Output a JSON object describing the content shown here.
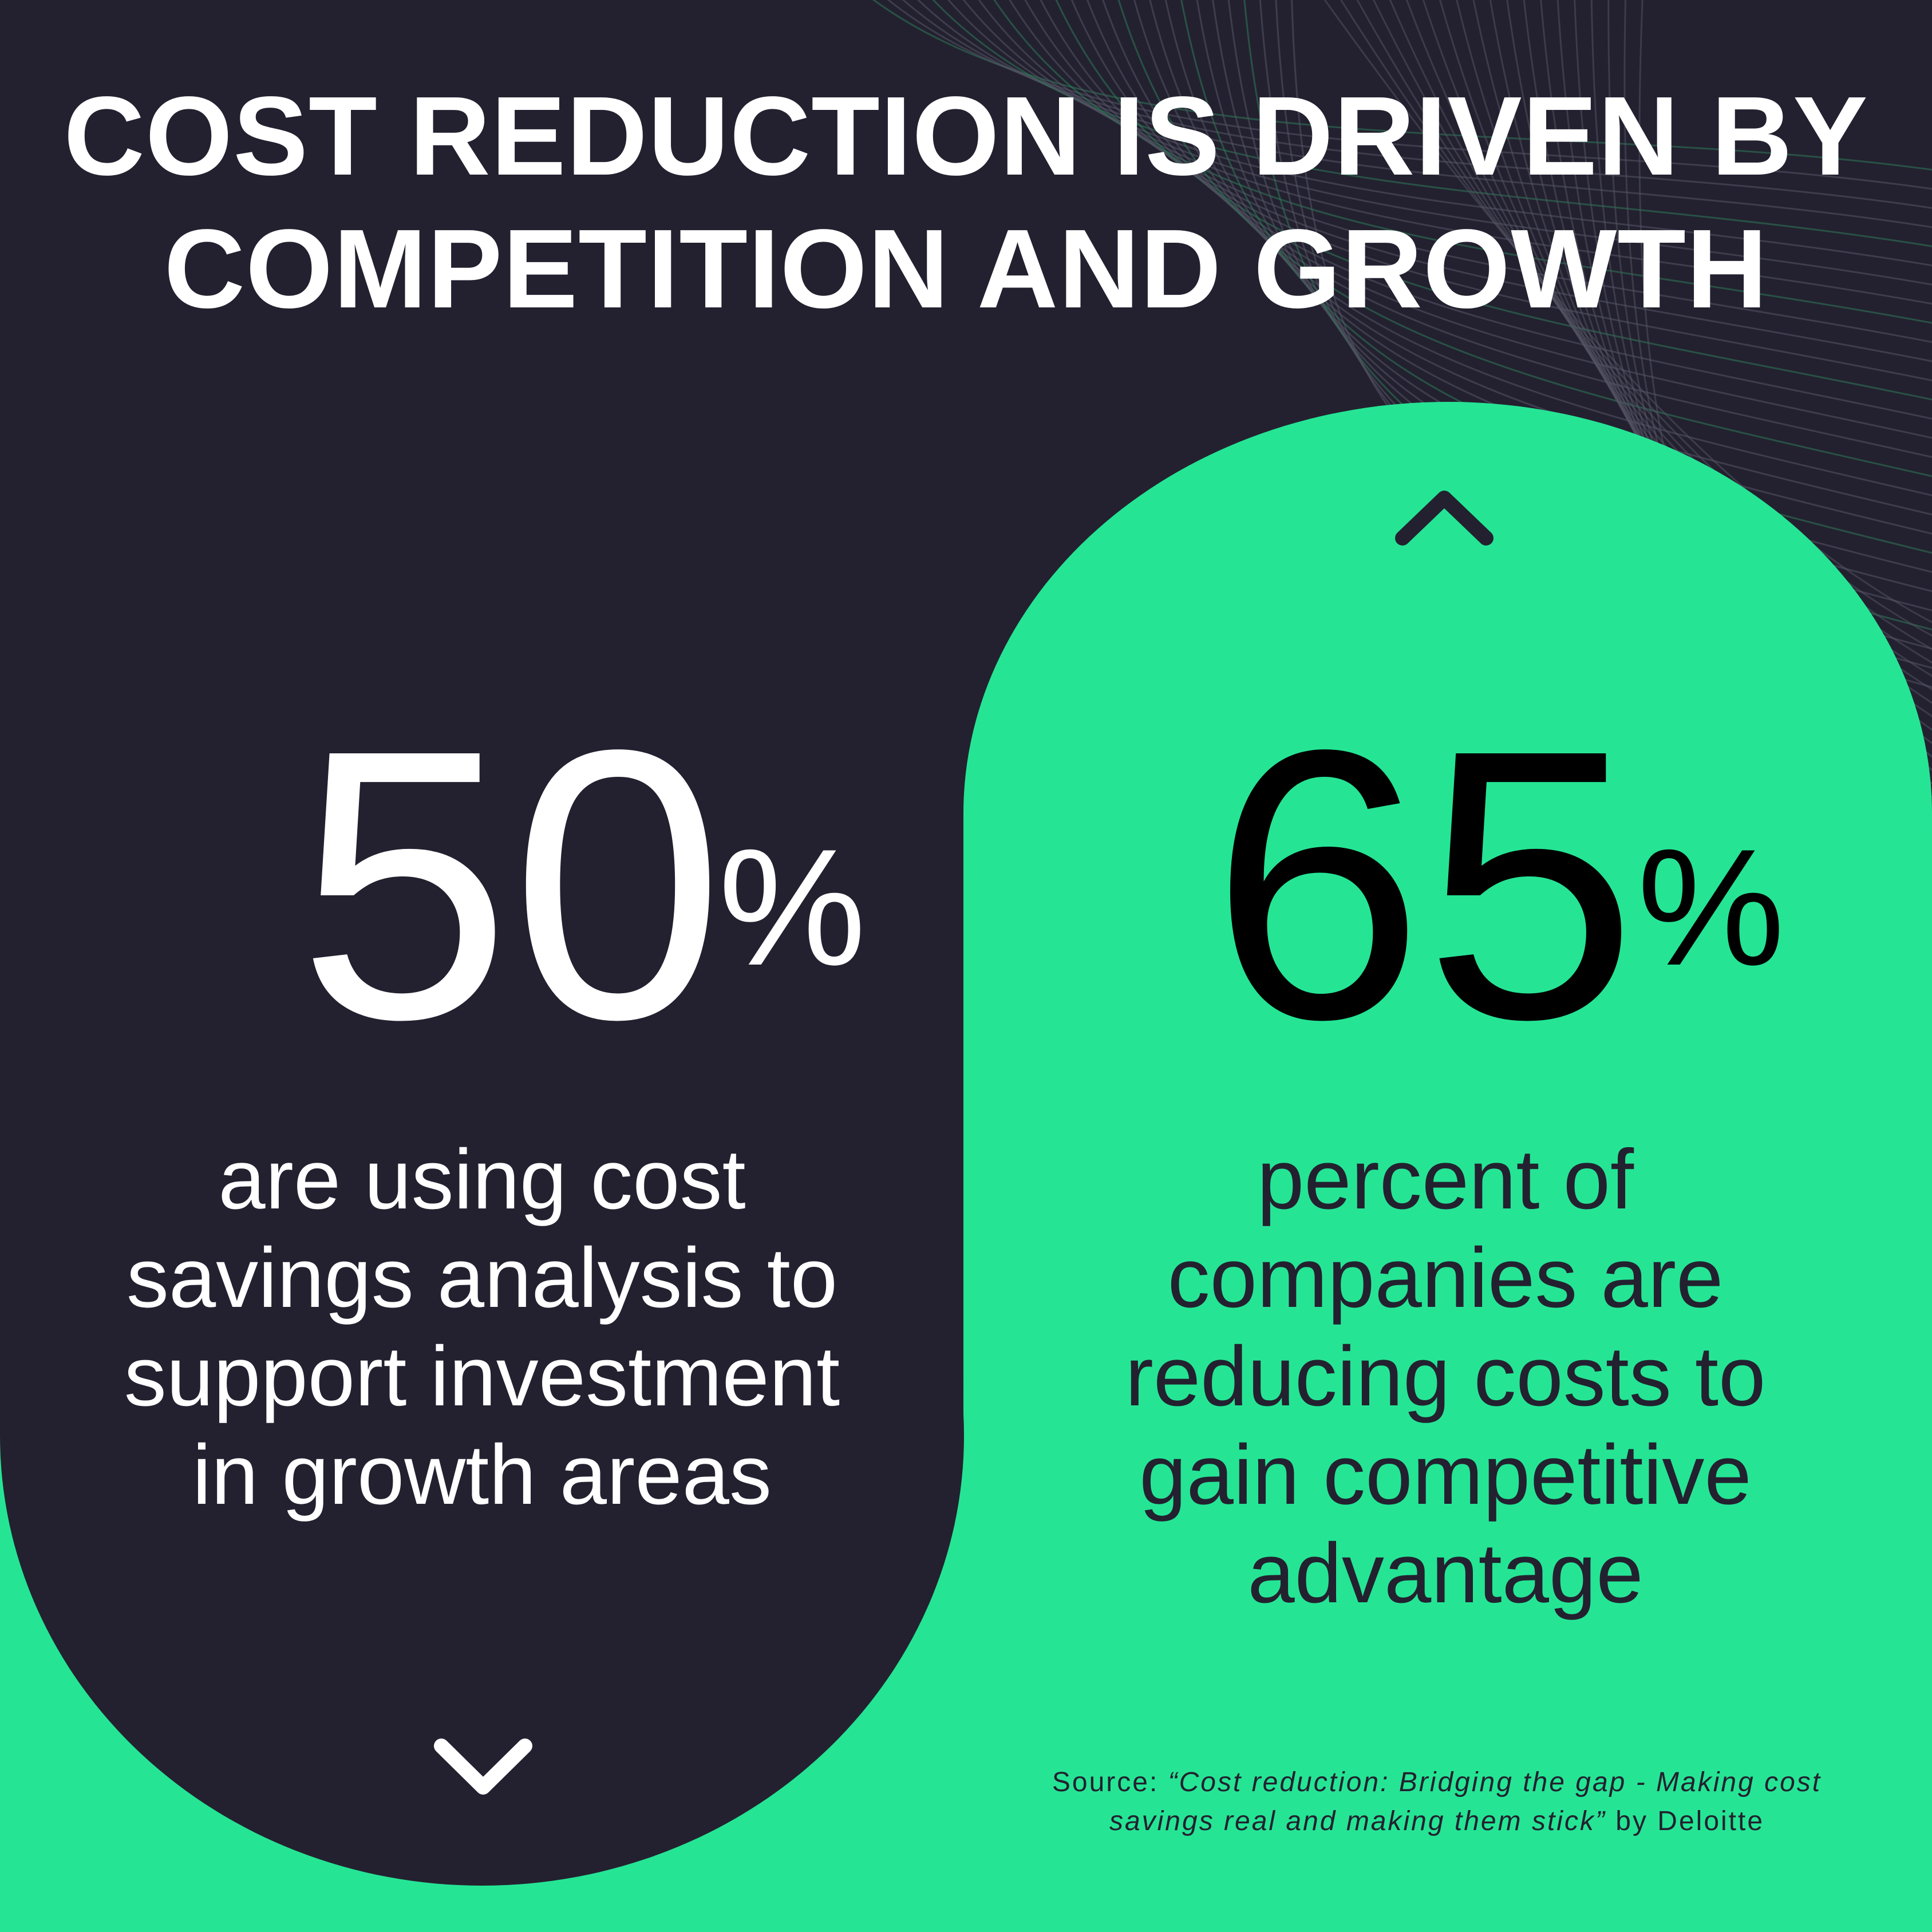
{
  "title": {
    "line1": "COST REDUCTION IS DRIVEN BY",
    "line2": "COMPETITION AND GROWTH"
  },
  "colors": {
    "background": "#23212f",
    "accent": "#25e595",
    "text_light": "#ffffff",
    "text_dark": "#23212f"
  },
  "left_stat": {
    "value": "50",
    "unit": "%",
    "description": "are using cost savings analysis to support investment in growth areas",
    "icon": "chevron-down-icon"
  },
  "right_stat": {
    "value": "65",
    "unit": "%",
    "description": "percent of companies are reducing costs to gain competitive advantage",
    "icon": "chevron-up-icon"
  },
  "source": {
    "prefix": "Source: ",
    "title": "“Cost reduction: Bridging the gap - Making cost savings real and making them stick”",
    "suffix": " by Deloitte"
  }
}
